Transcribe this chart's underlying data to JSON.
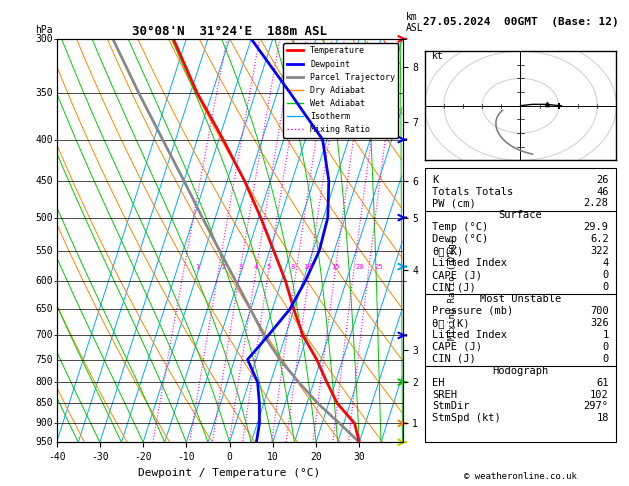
{
  "title_left": "30°08'N  31°24'E  188m ASL",
  "title_right": "27.05.2024  00GMT  (Base: 12)",
  "xlabel": "Dewpoint / Temperature (°C)",
  "pressure_levels": [
    300,
    350,
    400,
    450,
    500,
    550,
    600,
    650,
    700,
    750,
    800,
    850,
    900,
    950
  ],
  "temp_ticks": [
    -40,
    -30,
    -20,
    -10,
    0,
    10,
    20,
    30
  ],
  "km_ticks": [
    1,
    2,
    3,
    4,
    5,
    6,
    7,
    8
  ],
  "km_pressures": [
    900,
    800,
    730,
    580,
    500,
    450,
    380,
    325
  ],
  "mixing_ratio_labels": [
    1,
    2,
    3,
    4,
    5,
    8,
    10,
    15,
    20,
    25
  ],
  "mixing_ratio_temps": [
    -20.5,
    -14.5,
    -10.5,
    -7.0,
    -4.0,
    1.5,
    5.0,
    11.5,
    17.0,
    21.5
  ],
  "isotherm_color": "#00aaff",
  "dry_adiabat_color": "#ff8800",
  "wet_adiabat_color": "#00cc00",
  "mixing_ratio_color": "#ff00ff",
  "temp_profile_color": "#ff0000",
  "dewp_profile_color": "#0000ff",
  "parcel_color": "#888888",
  "legend_items": [
    {
      "label": "Temperature",
      "color": "#ff0000",
      "lw": 2,
      "ls": "-"
    },
    {
      "label": "Dewpoint",
      "color": "#0000ff",
      "lw": 2,
      "ls": "-"
    },
    {
      "label": "Parcel Trajectory",
      "color": "#888888",
      "lw": 2,
      "ls": "-"
    },
    {
      "label": "Dry Adiabat",
      "color": "#ff8800",
      "lw": 1,
      "ls": "-"
    },
    {
      "label": "Wet Adiabat",
      "color": "#00cc00",
      "lw": 1,
      "ls": "-"
    },
    {
      "label": "Isotherm",
      "color": "#00aaff",
      "lw": 1,
      "ls": "-"
    },
    {
      "label": "Mixing Ratio",
      "color": "#ff00ff",
      "lw": 1,
      "ls": ":"
    }
  ],
  "temp_data": {
    "pressure": [
      950,
      900,
      850,
      800,
      750,
      700,
      650,
      600,
      550,
      500,
      450,
      400,
      350,
      300
    ],
    "temp": [
      30.0,
      27.5,
      22.0,
      18.0,
      14.0,
      9.0,
      5.0,
      1.0,
      -4.0,
      -9.5,
      -16.0,
      -24.0,
      -33.5,
      -43.0
    ]
  },
  "dewp_data": {
    "pressure": [
      950,
      900,
      850,
      800,
      750,
      700,
      650,
      600,
      550,
      500,
      450,
      400,
      350,
      300
    ],
    "temp": [
      6.2,
      5.5,
      4.0,
      2.0,
      -2.0,
      1.0,
      4.0,
      5.5,
      6.5,
      6.0,
      3.5,
      -1.0,
      -12.0,
      -25.0
    ]
  },
  "parcel_data": {
    "pressure": [
      950,
      900,
      850,
      800,
      750,
      700,
      650,
      600,
      550,
      500,
      450,
      400,
      350,
      300
    ],
    "temp": [
      30.0,
      24.0,
      17.5,
      11.5,
      5.5,
      0.0,
      -5.0,
      -10.5,
      -16.5,
      -23.0,
      -30.0,
      -38.0,
      -47.0,
      -57.0
    ]
  },
  "info_panel": {
    "K": 26,
    "Totals_Totals": 46,
    "PW_cm": 2.28,
    "Surface_Temp": 29.9,
    "Surface_Dewp": 6.2,
    "Surface_theta_e": 322,
    "Surface_LI": 4,
    "Surface_CAPE": 0,
    "Surface_CIN": 0,
    "MU_Pressure": 700,
    "MU_theta_e": 326,
    "MU_LI": 1,
    "MU_CAPE": 0,
    "MU_CIN": 0,
    "Hodograph_EH": 61,
    "Hodograph_SREH": 102,
    "Hodograph_StmDir": "297°",
    "Hodograph_StmSpd": 18
  }
}
